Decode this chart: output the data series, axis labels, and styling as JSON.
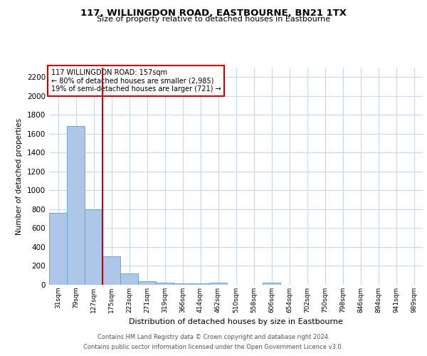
{
  "title": "117, WILLINGDON ROAD, EASTBOURNE, BN21 1TX",
  "subtitle": "Size of property relative to detached houses in Eastbourne",
  "xlabel": "Distribution of detached houses by size in Eastbourne",
  "ylabel": "Number of detached properties",
  "categories": [
    "31sqm",
    "79sqm",
    "127sqm",
    "175sqm",
    "223sqm",
    "271sqm",
    "319sqm",
    "366sqm",
    "414sqm",
    "462sqm",
    "510sqm",
    "558sqm",
    "606sqm",
    "654sqm",
    "702sqm",
    "750sqm",
    "798sqm",
    "846sqm",
    "894sqm",
    "941sqm",
    "989sqm"
  ],
  "values": [
    760,
    1680,
    800,
    300,
    120,
    35,
    22,
    17,
    14,
    20,
    0,
    0,
    22,
    0,
    0,
    0,
    0,
    0,
    0,
    0,
    0
  ],
  "bar_color": "#aec6e8",
  "bar_edgecolor": "#5a9fd4",
  "vline_color": "#cc0000",
  "annotation_text": "117 WILLINGDON ROAD: 157sqm\n← 80% of detached houses are smaller (2,985)\n19% of semi-detached houses are larger (721) →",
  "annotation_box_color": "#ffffff",
  "annotation_box_edgecolor": "#cc0000",
  "ylim": [
    0,
    2300
  ],
  "yticks": [
    0,
    200,
    400,
    600,
    800,
    1000,
    1200,
    1400,
    1600,
    1800,
    2000,
    2200
  ],
  "footer_line1": "Contains HM Land Registry data © Crown copyright and database right 2024.",
  "footer_line2": "Contains public sector information licensed under the Open Government Licence v3.0.",
  "background_color": "#ffffff",
  "grid_color": "#c8d8e8"
}
